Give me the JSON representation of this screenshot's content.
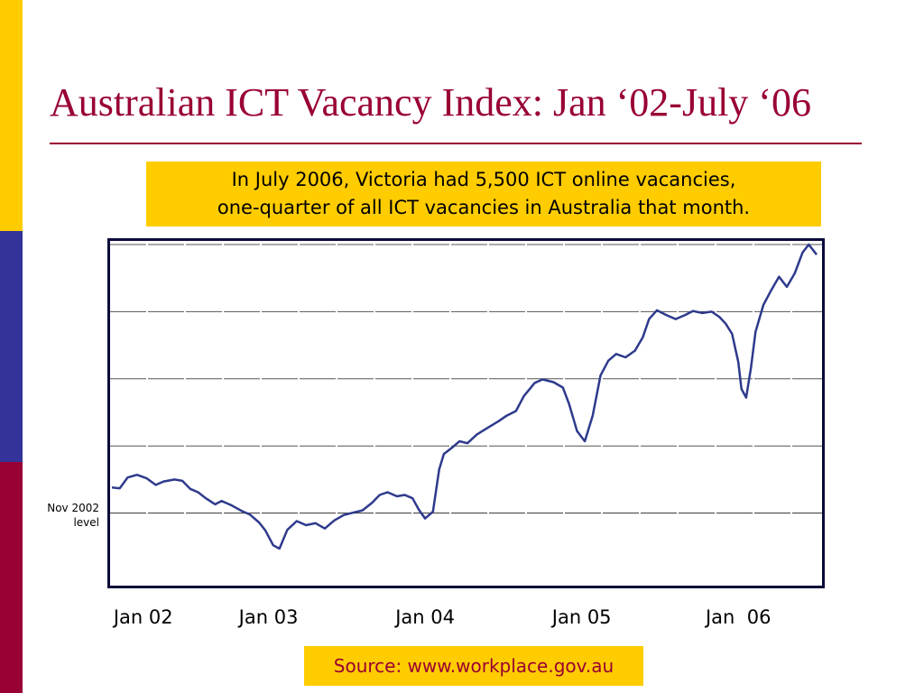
{
  "slide": {
    "title": "Australian ICT Vacancy Index: Jan ‘02-July ‘06",
    "callout_lines": [
      "In July 2006, Victoria had 5,500 ICT online vacancies,",
      "one-quarter of all ICT vacancies in Australia that month."
    ],
    "source": "Source: www.workplace.gov.au",
    "colors": {
      "accent": "#990033",
      "highlight": "#ffcc00",
      "stripe_blue": "#333399",
      "line": "#2e3a8c"
    }
  },
  "chart_data": {
    "type": "line",
    "title": "",
    "xlabel": "",
    "ylabel": "",
    "grid": true,
    "legend": "none",
    "ylim": [
      0,
      5
    ],
    "xlim": [
      2002.0,
      2006.5
    ],
    "x_tick_labels": [
      "Jan 02",
      "Jan 03",
      "Jan 04",
      "Jan 05",
      "Jan  06"
    ],
    "x_tick_values": [
      2002.2,
      2003.0,
      2004.0,
      2005.0,
      2006.0
    ],
    "y_gridlines": [
      1,
      2,
      3,
      4,
      5
    ],
    "reference_line": {
      "label_lines": [
        "Nov 2002",
        "level"
      ],
      "y": 1
    },
    "series": [
      {
        "values": [
          [
            2002.0,
            1.38
          ],
          [
            2002.05,
            1.37
          ],
          [
            2002.1,
            1.53
          ],
          [
            2002.16,
            1.57
          ],
          [
            2002.22,
            1.52
          ],
          [
            2002.28,
            1.42
          ],
          [
            2002.33,
            1.47
          ],
          [
            2002.4,
            1.5
          ],
          [
            2002.45,
            1.48
          ],
          [
            2002.5,
            1.36
          ],
          [
            2002.55,
            1.31
          ],
          [
            2002.6,
            1.22
          ],
          [
            2002.66,
            1.13
          ],
          [
            2002.7,
            1.18
          ],
          [
            2002.76,
            1.12
          ],
          [
            2002.83,
            1.03
          ],
          [
            2002.88,
            0.98
          ],
          [
            2002.94,
            0.86
          ],
          [
            2002.98,
            0.74
          ],
          [
            2003.03,
            0.52
          ],
          [
            2003.07,
            0.47
          ],
          [
            2003.12,
            0.75
          ],
          [
            2003.18,
            0.88
          ],
          [
            2003.24,
            0.82
          ],
          [
            2003.3,
            0.85
          ],
          [
            2003.36,
            0.77
          ],
          [
            2003.42,
            0.89
          ],
          [
            2003.48,
            0.97
          ],
          [
            2003.53,
            1.0
          ],
          [
            2003.6,
            1.04
          ],
          [
            2003.66,
            1.15
          ],
          [
            2003.71,
            1.27
          ],
          [
            2003.76,
            1.31
          ],
          [
            2003.82,
            1.25
          ],
          [
            2003.87,
            1.27
          ],
          [
            2003.92,
            1.22
          ],
          [
            2003.96,
            1.05
          ],
          [
            2004.0,
            0.92
          ],
          [
            2004.05,
            1.02
          ],
          [
            2004.09,
            1.65
          ],
          [
            2004.12,
            1.88
          ],
          [
            2004.17,
            1.97
          ],
          [
            2004.22,
            2.07
          ],
          [
            2004.27,
            2.04
          ],
          [
            2004.33,
            2.17
          ],
          [
            2004.4,
            2.27
          ],
          [
            2004.47,
            2.37
          ],
          [
            2004.52,
            2.45
          ],
          [
            2004.58,
            2.52
          ],
          [
            2004.63,
            2.74
          ],
          [
            2004.7,
            2.94
          ],
          [
            2004.75,
            2.99
          ],
          [
            2004.82,
            2.95
          ],
          [
            2004.88,
            2.87
          ],
          [
            2004.92,
            2.62
          ],
          [
            2004.97,
            2.22
          ],
          [
            2005.02,
            2.07
          ],
          [
            2005.07,
            2.45
          ],
          [
            2005.12,
            3.05
          ],
          [
            2005.17,
            3.27
          ],
          [
            2005.22,
            3.37
          ],
          [
            2005.28,
            3.32
          ],
          [
            2005.34,
            3.42
          ],
          [
            2005.39,
            3.62
          ],
          [
            2005.43,
            3.89
          ],
          [
            2005.48,
            4.02
          ],
          [
            2005.54,
            3.95
          ],
          [
            2005.6,
            3.89
          ],
          [
            2005.66,
            3.95
          ],
          [
            2005.71,
            4.01
          ],
          [
            2005.77,
            3.98
          ],
          [
            2005.83,
            4.0
          ],
          [
            2005.88,
            3.92
          ],
          [
            2005.92,
            3.82
          ],
          [
            2005.96,
            3.67
          ],
          [
            2006.0,
            3.25
          ],
          [
            2006.02,
            2.85
          ],
          [
            2006.05,
            2.72
          ],
          [
            2006.08,
            3.15
          ],
          [
            2006.11,
            3.7
          ],
          [
            2006.16,
            4.1
          ],
          [
            2006.21,
            4.32
          ],
          [
            2006.26,
            4.52
          ],
          [
            2006.31,
            4.37
          ],
          [
            2006.36,
            4.57
          ],
          [
            2006.41,
            4.88
          ],
          [
            2006.45,
            5.0
          ],
          [
            2006.5,
            4.85
          ]
        ]
      }
    ]
  }
}
